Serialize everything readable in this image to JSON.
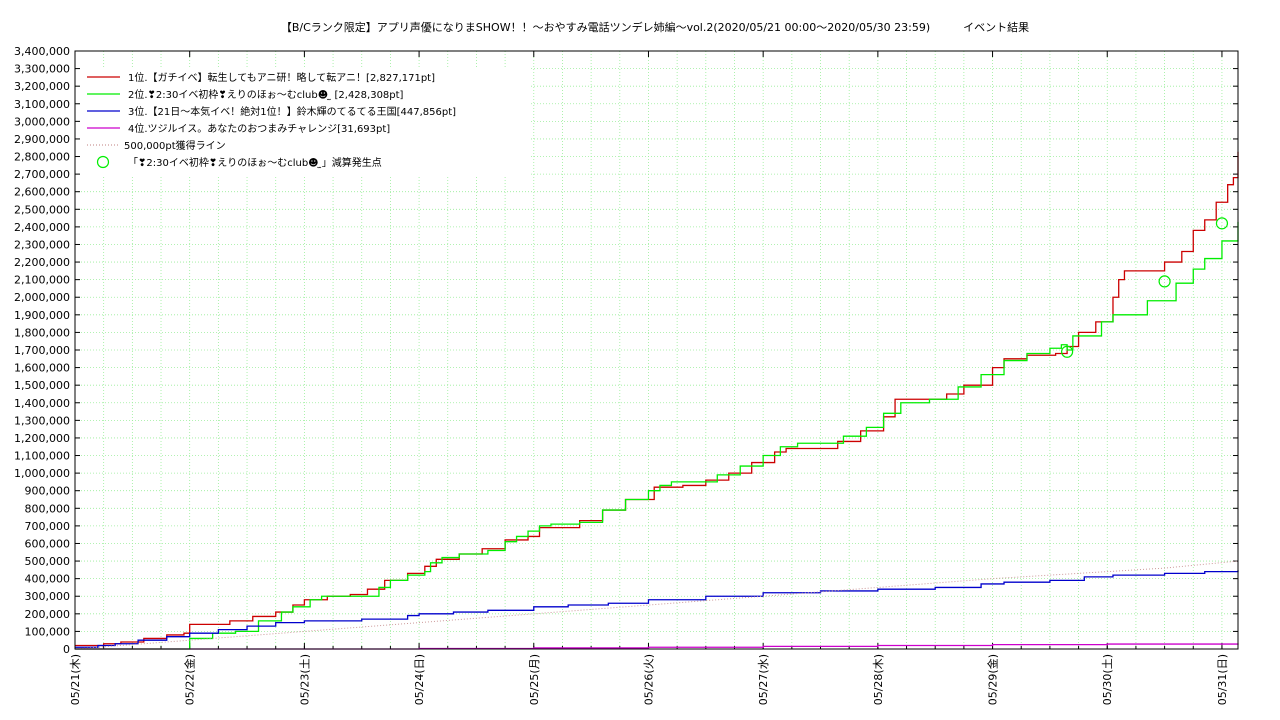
{
  "chart_data": {
    "type": "line",
    "title": "【B/Cランク限定】アプリ声優になりまSHOW！！～おやすみ電話ツンデレ姉編～vol.2(2020/05/21 00:00～2020/05/30 23:59)　　　イベント結果",
    "xlabel": "",
    "ylabel": "",
    "x_tick_labels": [
      "05/21(木)",
      "05/22(金)",
      "05/23(土)",
      "05/24(日)",
      "05/25(月)",
      "05/26(火)",
      "05/27(水)",
      "05/28(木)",
      "05/29(金)",
      "05/30(土)",
      "05/31(日)"
    ],
    "x_range_days": [
      0,
      10.14
    ],
    "ylim": [
      0,
      3400000
    ],
    "y_tick_step": 100000,
    "grid": true,
    "legend_position": "top-left",
    "colors": {
      "rank1": "#cc0000",
      "rank2": "#00ee00",
      "rank3": "#0000cc",
      "rank4": "#cc00cc",
      "line500k": "#cc9999",
      "gridline": "#99ee99"
    },
    "series": [
      {
        "name": "1位.【ガチイベ】転生してもアニ研！略して転アニ！[2,827,171pt]",
        "key": "rank1",
        "style": "step",
        "points": [
          [
            0,
            20000
          ],
          [
            0.25,
            30000
          ],
          [
            0.4,
            40000
          ],
          [
            0.6,
            60000
          ],
          [
            0.8,
            80000
          ],
          [
            0.95,
            90000
          ],
          [
            1.0,
            140000
          ],
          [
            1.2,
            140000
          ],
          [
            1.35,
            160000
          ],
          [
            1.55,
            185000
          ],
          [
            1.75,
            210000
          ],
          [
            1.9,
            250000
          ],
          [
            2.0,
            280000
          ],
          [
            2.2,
            300000
          ],
          [
            2.4,
            310000
          ],
          [
            2.55,
            340000
          ],
          [
            2.7,
            390000
          ],
          [
            2.9,
            430000
          ],
          [
            3.05,
            470000
          ],
          [
            3.15,
            510000
          ],
          [
            3.35,
            540000
          ],
          [
            3.55,
            570000
          ],
          [
            3.75,
            620000
          ],
          [
            3.95,
            640000
          ],
          [
            4.05,
            690000
          ],
          [
            4.2,
            690000
          ],
          [
            4.4,
            730000
          ],
          [
            4.6,
            790000
          ],
          [
            4.8,
            850000
          ],
          [
            5.05,
            920000
          ],
          [
            5.3,
            930000
          ],
          [
            5.5,
            960000
          ],
          [
            5.7,
            1000000
          ],
          [
            5.9,
            1060000
          ],
          [
            6.1,
            1120000
          ],
          [
            6.2,
            1140000
          ],
          [
            6.5,
            1140000
          ],
          [
            6.65,
            1180000
          ],
          [
            6.85,
            1240000
          ],
          [
            7.05,
            1320000
          ],
          [
            7.15,
            1420000
          ],
          [
            7.45,
            1420000
          ],
          [
            7.6,
            1450000
          ],
          [
            7.75,
            1500000
          ],
          [
            8.0,
            1600000
          ],
          [
            8.1,
            1650000
          ],
          [
            8.3,
            1670000
          ],
          [
            8.55,
            1680000
          ],
          [
            8.65,
            1720000
          ],
          [
            8.75,
            1800000
          ],
          [
            8.9,
            1860000
          ],
          [
            9.05,
            1950000
          ],
          [
            9.05,
            2000000
          ],
          [
            9.1,
            2100000
          ],
          [
            9.15,
            2150000
          ],
          [
            9.4,
            2150000
          ],
          [
            9.5,
            2200000
          ],
          [
            9.65,
            2260000
          ],
          [
            9.75,
            2380000
          ],
          [
            9.85,
            2440000
          ],
          [
            9.95,
            2540000
          ],
          [
            10.05,
            2640000
          ],
          [
            10.1,
            2680000
          ],
          [
            10.14,
            2827171
          ]
        ]
      },
      {
        "name": "2位.❣2:30イベ初枠❣えりのほぉ～むclub☻ ̫ [2,428,308pt]",
        "key": "rank2",
        "style": "step",
        "points": [
          [
            0,
            0
          ],
          [
            0.9,
            0
          ],
          [
            1.0,
            60000
          ],
          [
            1.2,
            90000
          ],
          [
            1.4,
            100000
          ],
          [
            1.5,
            100000
          ],
          [
            1.6,
            160000
          ],
          [
            1.8,
            210000
          ],
          [
            1.9,
            240000
          ],
          [
            2.05,
            280000
          ],
          [
            2.15,
            300000
          ],
          [
            2.5,
            300000
          ],
          [
            2.65,
            350000
          ],
          [
            2.75,
            390000
          ],
          [
            2.9,
            420000
          ],
          [
            3.05,
            440000
          ],
          [
            3.1,
            490000
          ],
          [
            3.2,
            520000
          ],
          [
            3.35,
            540000
          ],
          [
            3.6,
            560000
          ],
          [
            3.75,
            610000
          ],
          [
            3.85,
            640000
          ],
          [
            3.95,
            670000
          ],
          [
            4.05,
            700000
          ],
          [
            4.15,
            710000
          ],
          [
            4.4,
            720000
          ],
          [
            4.6,
            790000
          ],
          [
            4.8,
            850000
          ],
          [
            5.0,
            900000
          ],
          [
            5.1,
            930000
          ],
          [
            5.2,
            950000
          ],
          [
            5.4,
            950000
          ],
          [
            5.6,
            990000
          ],
          [
            5.8,
            1040000
          ],
          [
            6.0,
            1100000
          ],
          [
            6.15,
            1150000
          ],
          [
            6.3,
            1170000
          ],
          [
            6.5,
            1170000
          ],
          [
            6.7,
            1210000
          ],
          [
            6.9,
            1260000
          ],
          [
            7.05,
            1340000
          ],
          [
            7.2,
            1400000
          ],
          [
            7.45,
            1420000
          ],
          [
            7.7,
            1490000
          ],
          [
            7.9,
            1560000
          ],
          [
            8.1,
            1640000
          ],
          [
            8.3,
            1680000
          ],
          [
            8.5,
            1710000
          ],
          [
            8.6,
            1730000
          ],
          [
            8.65,
            1700000
          ],
          [
            8.7,
            1780000
          ],
          [
            8.95,
            1860000
          ],
          [
            9.05,
            1900000
          ],
          [
            9.2,
            1900000
          ],
          [
            9.35,
            1980000
          ],
          [
            9.6,
            2080000
          ],
          [
            9.75,
            2160000
          ],
          [
            9.85,
            2220000
          ],
          [
            10.0,
            2320000
          ],
          [
            10.14,
            2428308
          ]
        ]
      },
      {
        "name": "3位.【21日～本気イベ！絶対1位！】鈴木輝のてるてる王国[447,856pt]",
        "key": "rank3",
        "style": "step",
        "points": [
          [
            0,
            10000
          ],
          [
            0.2,
            20000
          ],
          [
            0.35,
            30000
          ],
          [
            0.55,
            50000
          ],
          [
            0.8,
            70000
          ],
          [
            1.0,
            90000
          ],
          [
            1.25,
            110000
          ],
          [
            1.5,
            130000
          ],
          [
            1.75,
            150000
          ],
          [
            2.0,
            160000
          ],
          [
            2.5,
            170000
          ],
          [
            2.9,
            190000
          ],
          [
            3.0,
            200000
          ],
          [
            3.3,
            210000
          ],
          [
            3.6,
            220000
          ],
          [
            4.0,
            240000
          ],
          [
            4.3,
            250000
          ],
          [
            4.65,
            260000
          ],
          [
            5.0,
            280000
          ],
          [
            5.5,
            300000
          ],
          [
            6.0,
            320000
          ],
          [
            6.5,
            330000
          ],
          [
            7.0,
            340000
          ],
          [
            7.5,
            350000
          ],
          [
            7.9,
            370000
          ],
          [
            8.1,
            380000
          ],
          [
            8.5,
            390000
          ],
          [
            8.8,
            410000
          ],
          [
            9.05,
            420000
          ],
          [
            9.5,
            430000
          ],
          [
            9.85,
            440000
          ],
          [
            10.14,
            447856
          ]
        ]
      },
      {
        "name": "4位.ツジルイス。あなたのおつまみチャレンジ[31,693pt]",
        "key": "rank4",
        "style": "step",
        "points": [
          [
            0,
            0
          ],
          [
            2.0,
            0
          ],
          [
            3.0,
            3000
          ],
          [
            4.0,
            6000
          ],
          [
            5.0,
            10000
          ],
          [
            6.0,
            15000
          ],
          [
            7.0,
            20000
          ],
          [
            8.0,
            25000
          ],
          [
            9.0,
            28000
          ],
          [
            10.14,
            31693
          ]
        ]
      },
      {
        "name": "500,000pt獲得ライン",
        "key": "line500k",
        "style": "dotted",
        "points": [
          [
            0,
            0
          ],
          [
            2.0,
            100000
          ],
          [
            4.0,
            200000
          ],
          [
            6.0,
            300000
          ],
          [
            8.0,
            400000
          ],
          [
            9.5,
            460000
          ],
          [
            10.14,
            500000
          ]
        ]
      }
    ],
    "markers": {
      "name": "「❣2:30イベ初枠❣えりのほぉ～むclub☻ ̫」減算発生点",
      "key": "rank2",
      "points": [
        [
          8.65,
          1690000
        ],
        [
          9.5,
          2090000
        ],
        [
          10.0,
          2420000
        ]
      ]
    }
  }
}
